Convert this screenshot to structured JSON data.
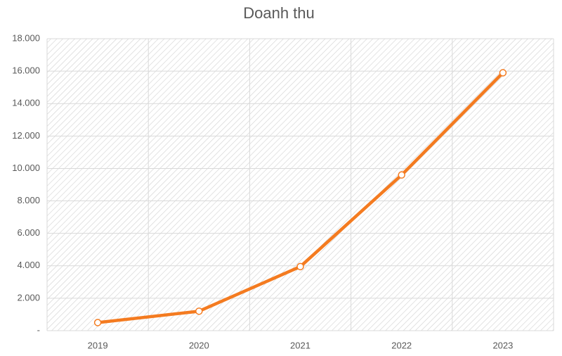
{
  "chart_data": {
    "type": "line",
    "title": "Doanh thu",
    "categories": [
      "2019",
      "2020",
      "2021",
      "2022",
      "2023"
    ],
    "series": [
      {
        "name": "Doanh thu",
        "color": "#f47b20",
        "values": [
          500,
          1200,
          3950,
          9600,
          15900
        ]
      }
    ],
    "ylim": [
      0,
      18000
    ],
    "yticks": [
      {
        "value": 0,
        "label": "-"
      },
      {
        "value": 2000,
        "label": "2.000"
      },
      {
        "value": 4000,
        "label": "4.000"
      },
      {
        "value": 6000,
        "label": "6.000"
      },
      {
        "value": 8000,
        "label": "8.000"
      },
      {
        "value": 10000,
        "label": "10.000"
      },
      {
        "value": 12000,
        "label": "12.000"
      },
      {
        "value": 14000,
        "label": "14.000"
      },
      {
        "value": 16000,
        "label": "16.000"
      },
      {
        "value": 18000,
        "label": "18.000"
      }
    ],
    "grid": true
  }
}
